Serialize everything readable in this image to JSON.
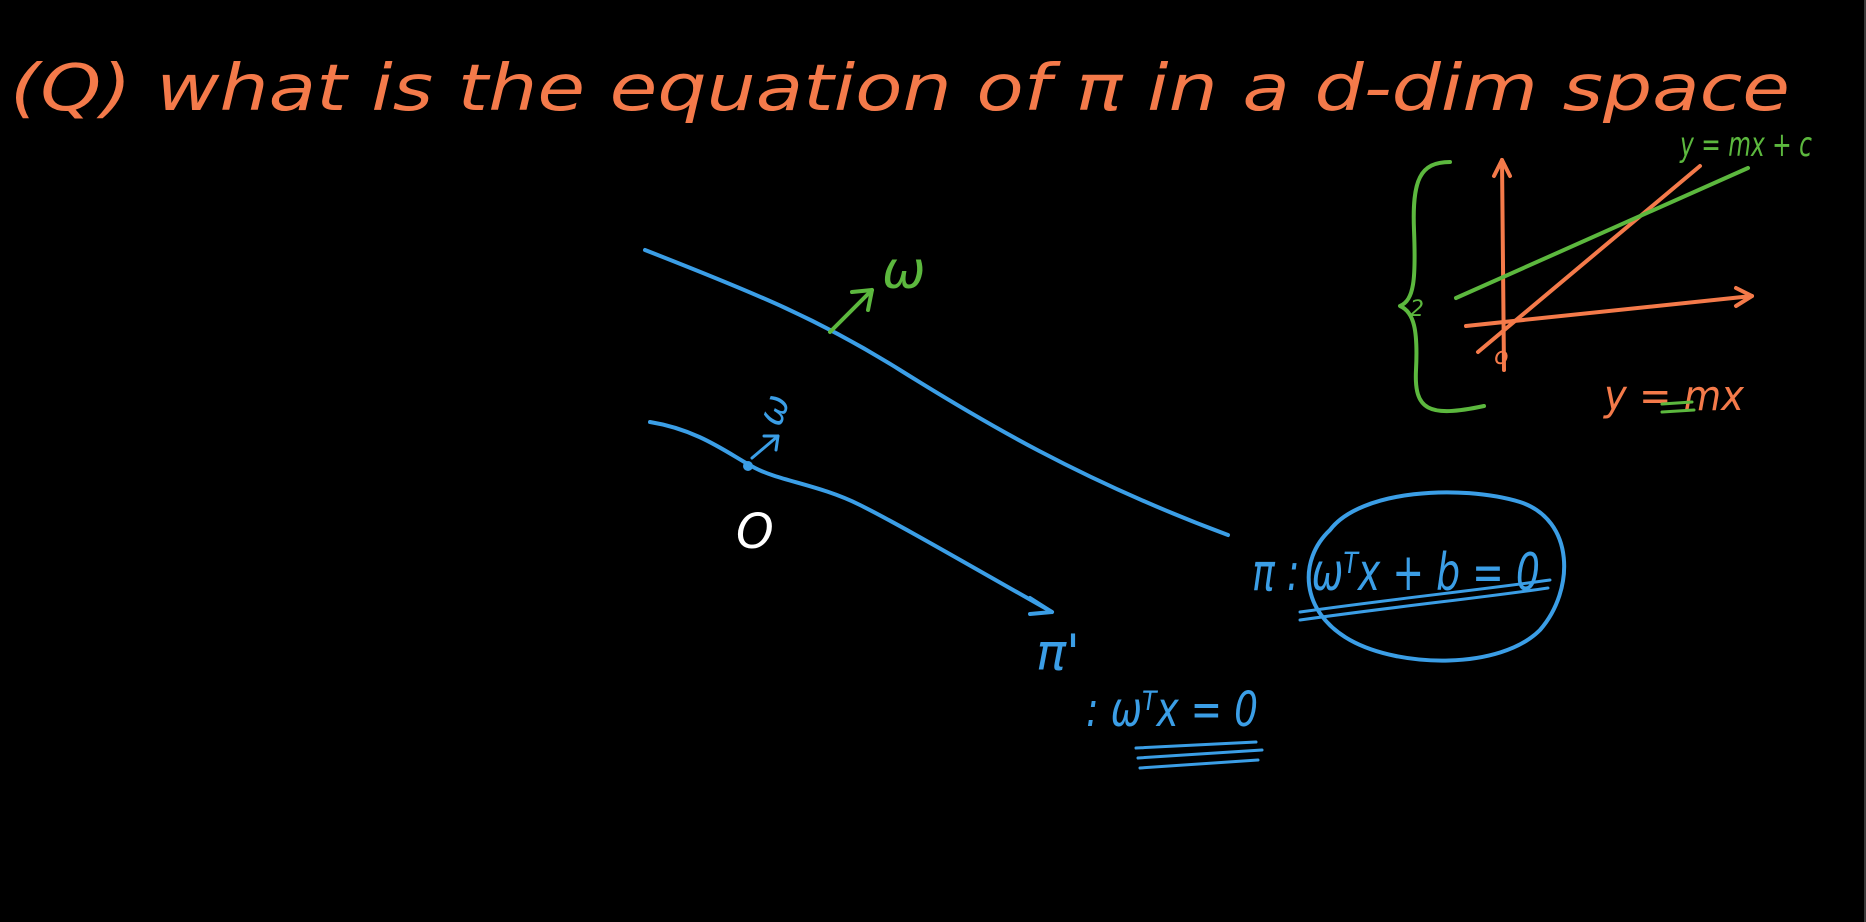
{
  "colors": {
    "background": "#000000",
    "heading": "#f47a4a",
    "blue": "#3b9ee6",
    "green": "#5cb83e",
    "orange": "#f47a4a",
    "white": "#ffffff"
  },
  "heading": {
    "text": "(Q)  what is the  equation  of  π  in  a  d-dim  space"
  },
  "main_figure": {
    "normal_label": "ω",
    "small_normal_label": "ω",
    "origin_label": "O",
    "plane_pi_equation": "π : ωᵀx + b = 0",
    "plane_pi_prime_label": "π'",
    "plane_pi_prime_equation": ": ωᵀx = 0"
  },
  "inset_figure": {
    "line_with_intercept": "y = mx + c",
    "line_through_origin": "y = mx",
    "origin_mark": "o",
    "brace_label": "2"
  }
}
